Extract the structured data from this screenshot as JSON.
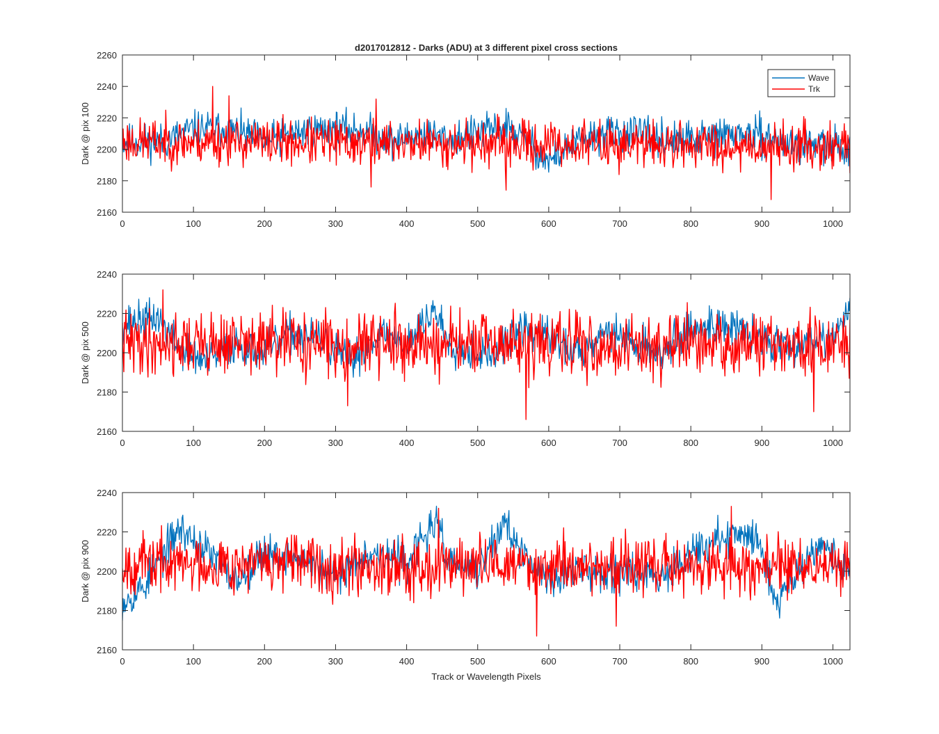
{
  "chart_data": {
    "type": "line",
    "title": "d2017012812 - Darks (ADU) at 3 different pixel cross sections",
    "xlabel": "Track or Wavelength Pixels",
    "legend": {
      "placement": "top-right",
      "entries": [
        "Wave",
        "Trk"
      ]
    },
    "colors": {
      "Wave": "#0072BD",
      "Trk": "#FF0000"
    },
    "grid": false,
    "panels": [
      {
        "ylabel": "Dark @ pix 100",
        "xlim": [
          0,
          1024
        ],
        "ylim": [
          2160,
          2260
        ],
        "xticks": [
          0,
          100,
          200,
          300,
          400,
          500,
          600,
          700,
          800,
          900,
          1000
        ],
        "yticks": [
          2160,
          2180,
          2200,
          2220,
          2240,
          2260
        ],
        "series": [
          {
            "name": "Wave",
            "baseline": [
              [
                0,
                2205
              ],
              [
                60,
                2205
              ],
              [
                100,
                2213
              ],
              [
                150,
                2213
              ],
              [
                200,
                2205
              ],
              [
                260,
                2212
              ],
              [
                300,
                2213
              ],
              [
                340,
                2212
              ],
              [
                380,
                2205
              ],
              [
                420,
                2210
              ],
              [
                460,
                2207
              ],
              [
                500,
                2210
              ],
              [
                540,
                2215
              ],
              [
                560,
                2208
              ],
              [
                600,
                2192
              ],
              [
                640,
                2205
              ],
              [
                680,
                2210
              ],
              [
                720,
                2210
              ],
              [
                780,
                2205
              ],
              [
                820,
                2208
              ],
              [
                860,
                2210
              ],
              [
                900,
                2208
              ],
              [
                940,
                2203
              ],
              [
                1000,
                2202
              ],
              [
                1024,
                2200
              ]
            ],
            "noise": 7,
            "seed": 11
          },
          {
            "name": "Trk",
            "baseline": [
              [
                0,
                2205
              ],
              [
                1024,
                2202
              ]
            ],
            "noise": 9,
            "seed": 23,
            "spikes": [
              [
                127,
                2240
              ],
              [
                150,
                2234
              ],
              [
                357,
                2232
              ],
              [
                913,
                2168
              ],
              [
                540,
                2174
              ],
              [
                350,
                2176
              ]
            ]
          }
        ]
      },
      {
        "ylabel": "Dark @ pix 500",
        "xlim": [
          0,
          1024
        ],
        "ylim": [
          2160,
          2240
        ],
        "xticks": [
          0,
          100,
          200,
          300,
          400,
          500,
          600,
          700,
          800,
          900,
          1000
        ],
        "yticks": [
          2160,
          2180,
          2200,
          2220,
          2240
        ],
        "series": [
          {
            "name": "Wave",
            "baseline": [
              [
                0,
                2215
              ],
              [
                50,
                2218
              ],
              [
                80,
                2202
              ],
              [
                120,
                2195
              ],
              [
                160,
                2205
              ],
              [
                200,
                2200
              ],
              [
                240,
                2210
              ],
              [
                280,
                2206
              ],
              [
                320,
                2195
              ],
              [
                360,
                2210
              ],
              [
                400,
                2205
              ],
              [
                440,
                2222
              ],
              [
                460,
                2205
              ],
              [
                520,
                2198
              ],
              [
                560,
                2212
              ],
              [
                600,
                2208
              ],
              [
                640,
                2200
              ],
              [
                680,
                2212
              ],
              [
                720,
                2205
              ],
              [
                760,
                2200
              ],
              [
                800,
                2212
              ],
              [
                840,
                2215
              ],
              [
                880,
                2210
              ],
              [
                920,
                2205
              ],
              [
                960,
                2205
              ],
              [
                1000,
                2210
              ],
              [
                1024,
                2220
              ]
            ],
            "noise": 6,
            "seed": 37
          },
          {
            "name": "Trk",
            "baseline": [
              [
                0,
                2205
              ],
              [
                1024,
                2203
              ]
            ],
            "noise": 10,
            "seed": 41,
            "spikes": [
              [
                57,
                2232
              ],
              [
                568,
                2166
              ],
              [
                317,
                2173
              ],
              [
                973,
                2170
              ]
            ]
          }
        ]
      },
      {
        "ylabel": "Dark @ pix 900",
        "xlim": [
          0,
          1024
        ],
        "ylim": [
          2160,
          2240
        ],
        "xticks": [
          0,
          100,
          200,
          300,
          400,
          500,
          600,
          700,
          800,
          900,
          1000
        ],
        "yticks": [
          2160,
          2180,
          2200,
          2220,
          2240
        ],
        "series": [
          {
            "name": "Wave",
            "baseline": [
              [
                0,
                2185
              ],
              [
                30,
                2192
              ],
              [
                80,
                2222
              ],
              [
                120,
                2210
              ],
              [
                160,
                2195
              ],
              [
                200,
                2210
              ],
              [
                260,
                2205
              ],
              [
                300,
                2196
              ],
              [
                340,
                2210
              ],
              [
                400,
                2205
              ],
              [
                440,
                2225
              ],
              [
                460,
                2205
              ],
              [
                500,
                2200
              ],
              [
                540,
                2226
              ],
              [
                560,
                2208
              ],
              [
                600,
                2196
              ],
              [
                640,
                2200
              ],
              [
                700,
                2200
              ],
              [
                760,
                2198
              ],
              [
                800,
                2210
              ],
              [
                860,
                2218
              ],
              [
                890,
                2220
              ],
              [
                920,
                2186
              ],
              [
                940,
                2195
              ],
              [
                980,
                2215
              ],
              [
                1024,
                2200
              ]
            ],
            "noise": 6,
            "seed": 53
          },
          {
            "name": "Trk",
            "baseline": [
              [
                0,
                2204
              ],
              [
                1024,
                2202
              ]
            ],
            "noise": 9,
            "seed": 67,
            "spikes": [
              [
                445,
                2232
              ],
              [
                583,
                2167
              ],
              [
                695,
                2172
              ],
              [
                857,
                2233
              ]
            ]
          }
        ]
      }
    ]
  }
}
